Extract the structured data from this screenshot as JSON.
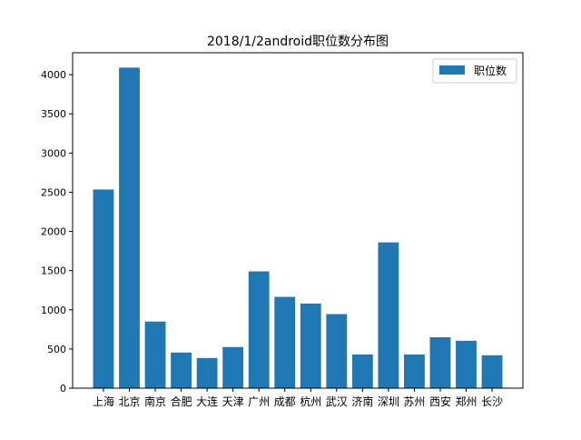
{
  "chart_data": {
    "type": "bar",
    "title": "2018/1/2android职位数分布图",
    "xlabel": "",
    "ylabel": "",
    "categories": [
      "上海",
      "北京",
      "南京",
      "合肥",
      "大连",
      "天津",
      "广州",
      "成都",
      "杭州",
      "武汉",
      "济南",
      "深圳",
      "苏州",
      "西安",
      "郑州",
      "长沙"
    ],
    "series": [
      {
        "name": "职位数",
        "values": [
          2535,
          4090,
          850,
          455,
          385,
          525,
          1490,
          1165,
          1080,
          945,
          430,
          1860,
          430,
          650,
          605,
          420
        ],
        "color": "#1f77b4"
      }
    ],
    "ylim": [
      0,
      4280
    ],
    "yticks": [
      0,
      500,
      1000,
      1500,
      2000,
      2500,
      3000,
      3500,
      4000
    ],
    "grid": false,
    "legend_position": "top-right"
  }
}
